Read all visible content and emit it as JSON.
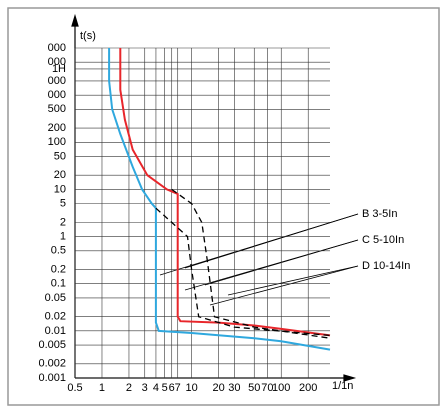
{
  "chart_data": {
    "type": "line",
    "xlabel": "1/1n",
    "ylabel": "t(s)",
    "xlog": true,
    "ylog": true,
    "grid": true,
    "xlim": [
      0.5,
      350
    ],
    "ylim": [
      0.001,
      10000
    ],
    "xticks": [
      0.5,
      1,
      2,
      3,
      4,
      5,
      6,
      7,
      10,
      20,
      30,
      50,
      70,
      100,
      200
    ],
    "yticks": [
      {
        "value": 10000,
        "label": "000"
      },
      {
        "value": 5000,
        "label": "000"
      },
      {
        "value": 3600,
        "label": "1H"
      },
      {
        "value": 2000,
        "label": "000"
      },
      {
        "value": 1000,
        "label": "000"
      },
      500,
      200,
      100,
      50,
      20,
      10,
      5,
      2,
      1,
      0.5,
      0.2,
      0.1,
      0.05,
      0.02,
      0.01,
      0.005,
      0.002,
      0.001
    ],
    "series": [
      {
        "color": "#2fa8de",
        "dash": false,
        "x": [
          1.2,
          1.2,
          1.3,
          1.6,
          2.2,
          2.8,
          3.6,
          4,
          4,
          4.3,
          10,
          50,
          100,
          350
        ],
        "values": [
          10000,
          2000,
          500,
          150,
          30,
          10,
          5,
          4,
          0.015,
          0.01,
          0.009,
          0.007,
          0.006,
          0.004
        ]
      },
      {
        "color": "#e8262b",
        "dash": false,
        "x": [
          1.6,
          1.6,
          1.8,
          2.2,
          3.2,
          5.3,
          7,
          7,
          7.5,
          20,
          50,
          100,
          350
        ],
        "values": [
          10000,
          1300,
          300,
          70,
          20,
          10,
          8,
          0.02,
          0.016,
          0.015,
          0.013,
          0.011,
          0.008
        ]
      },
      {
        "color": "#000000",
        "dash": true,
        "x": [
          6,
          10,
          13,
          15,
          18,
          50,
          350
        ],
        "values": [
          10,
          5,
          2,
          0.3,
          0.02,
          0.012,
          0.007
        ]
      },
      {
        "color": "#000000",
        "dash": true,
        "x": [
          4,
          6,
          9,
          10,
          12,
          30,
          350
        ],
        "values": [
          4,
          2,
          1,
          0.2,
          0.02,
          0.012,
          0.008
        ]
      }
    ],
    "annotations": [
      "B 3-5In",
      "C 5-10In",
      "D 10-14In"
    ]
  }
}
